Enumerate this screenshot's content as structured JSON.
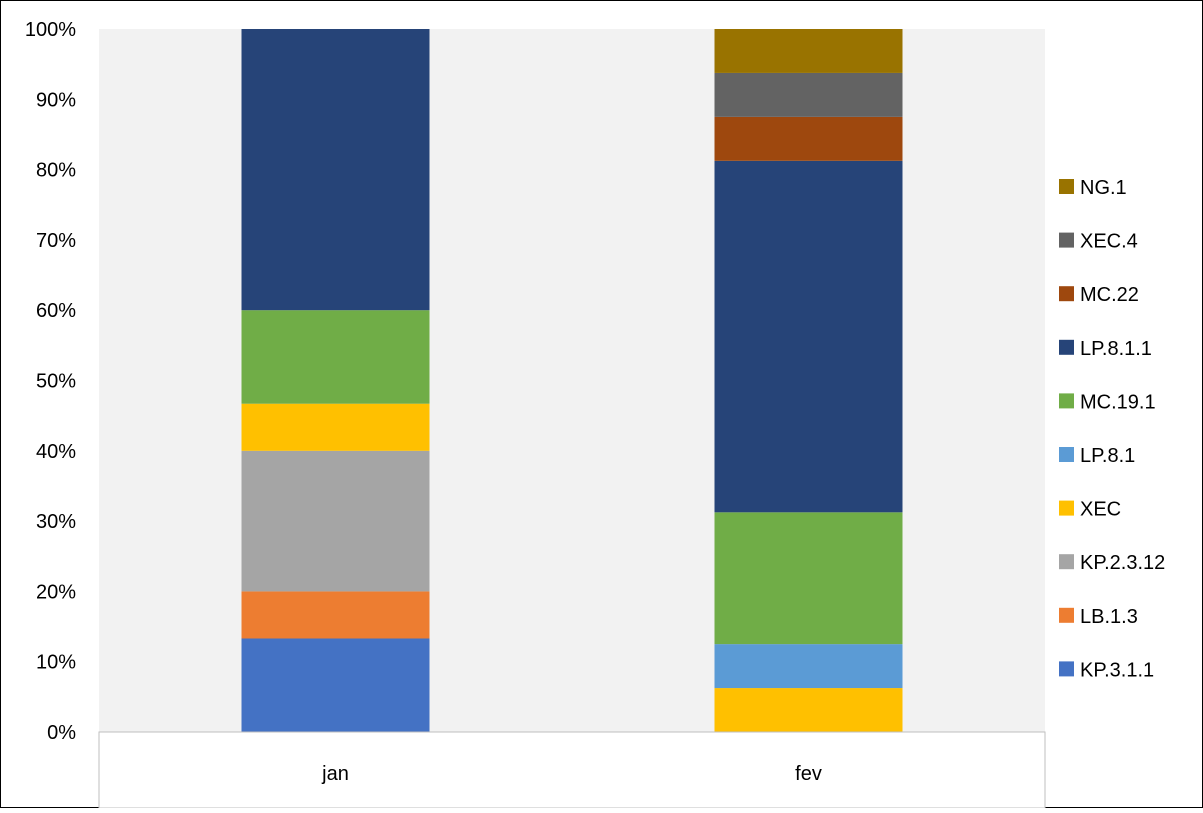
{
  "chart_data": {
    "type": "bar",
    "stacked": true,
    "percent": true,
    "categories": [
      "jan",
      "fev"
    ],
    "series": [
      {
        "name": "KP.3.1.1",
        "color": "#4472C4",
        "values": [
          13.3,
          0
        ]
      },
      {
        "name": "LB.1.3",
        "color": "#ED7D31",
        "values": [
          6.7,
          0
        ]
      },
      {
        "name": "KP.2.3.12",
        "color": "#A5A5A5",
        "values": [
          20.0,
          0
        ]
      },
      {
        "name": "XEC",
        "color": "#FFC000",
        "values": [
          6.7,
          6.25
        ]
      },
      {
        "name": "LP.8.1",
        "color": "#5B9BD5",
        "values": [
          0,
          6.25
        ]
      },
      {
        "name": "MC.19.1",
        "color": "#70AD47",
        "values": [
          13.3,
          18.75
        ]
      },
      {
        "name": "LP.8.1.1",
        "color": "#264478",
        "values": [
          40.0,
          50.0
        ]
      },
      {
        "name": "MC.22",
        "color": "#9E480E",
        "values": [
          0,
          6.25
        ]
      },
      {
        "name": "XEC.4",
        "color": "#636363",
        "values": [
          0,
          6.25
        ]
      },
      {
        "name": "NG.1",
        "color": "#997300",
        "values": [
          0,
          6.25
        ]
      }
    ],
    "yticks": [
      "0%",
      "10%",
      "20%",
      "30%",
      "40%",
      "50%",
      "60%",
      "70%",
      "80%",
      "90%",
      "100%"
    ],
    "ylim": [
      0,
      100
    ],
    "grid": false,
    "legend": "right",
    "plot_background": "#F2F2F2"
  }
}
